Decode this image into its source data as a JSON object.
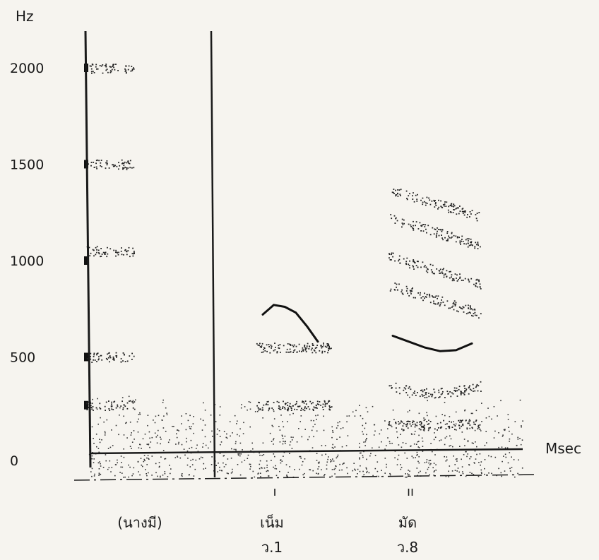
{
  "chart_data": {
    "type": "scatter",
    "subtype": "spectrogram",
    "title": "",
    "xlabel": "Msec",
    "ylabel": "Hz",
    "y_ticks": [
      "2000",
      "1500",
      "1000",
      "500",
      "0"
    ],
    "y_tick_values": [
      2000,
      1500,
      1000,
      500,
      0
    ],
    "ylim": [
      0,
      2000
    ],
    "segments": [
      {
        "label": "(นางมี)",
        "marker": "",
        "value_label": "",
        "formants_hz": [
          250,
          500,
          1050,
          1500,
          2000
        ]
      },
      {
        "label": "เน็ม",
        "marker": "ı",
        "value_label": "ว.1",
        "formants_hz": [
          250,
          550
        ],
        "contour_hz": [
          720,
          770,
          760,
          730,
          660,
          580
        ]
      },
      {
        "label": "มัด",
        "marker": "ıı",
        "value_label": "ว.8",
        "formants_hz": [
          150,
          350,
          800,
          950,
          1150,
          1300
        ],
        "contour_hz": [
          610,
          580,
          550,
          530,
          535,
          570
        ]
      }
    ]
  }
}
